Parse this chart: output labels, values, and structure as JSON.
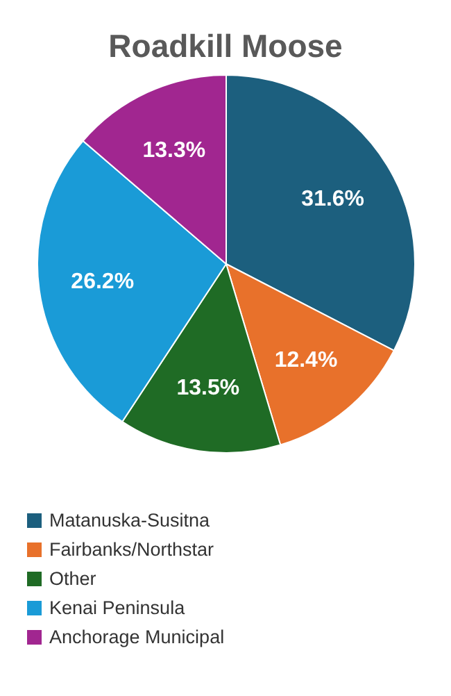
{
  "chart_data": {
    "type": "pie",
    "title": "Roadkill Moose",
    "categories": [
      "Matanuska-Susitna",
      "Fairbanks/Northstar",
      "Other",
      "Kenai Peninsula",
      "Anchorage Municipal"
    ],
    "values": [
      31.6,
      12.4,
      13.5,
      26.2,
      13.3
    ],
    "value_labels": [
      "31.6%",
      "12.4%",
      "13.5%",
      "26.2%",
      "13.3%"
    ],
    "colors": [
      "#1c5f7e",
      "#e8712b",
      "#1f6b25",
      "#1a9bd7",
      "#a12690"
    ],
    "legend": "bottom"
  }
}
